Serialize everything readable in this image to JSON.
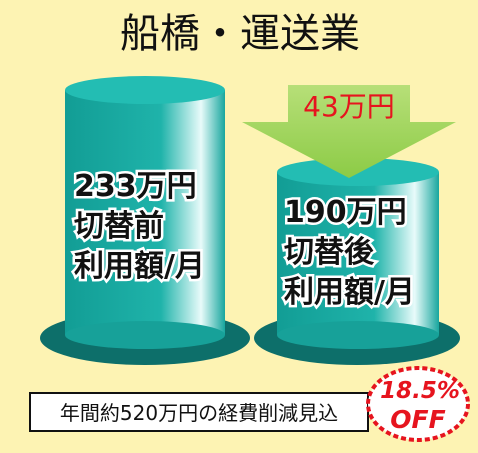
{
  "title": "船橋・運送業",
  "cylinders": [
    {
      "amount": "233万円",
      "line1": "切替前",
      "line2": "利用額/月"
    },
    {
      "amount": "190万円",
      "line1": "切替後",
      "line2": "利用額/月"
    }
  ],
  "arrow": {
    "amount": "43万円"
  },
  "footer": "年間約520万円の経費削減見込",
  "badge": {
    "line1": "18.5%",
    "line2": "OFF"
  }
}
